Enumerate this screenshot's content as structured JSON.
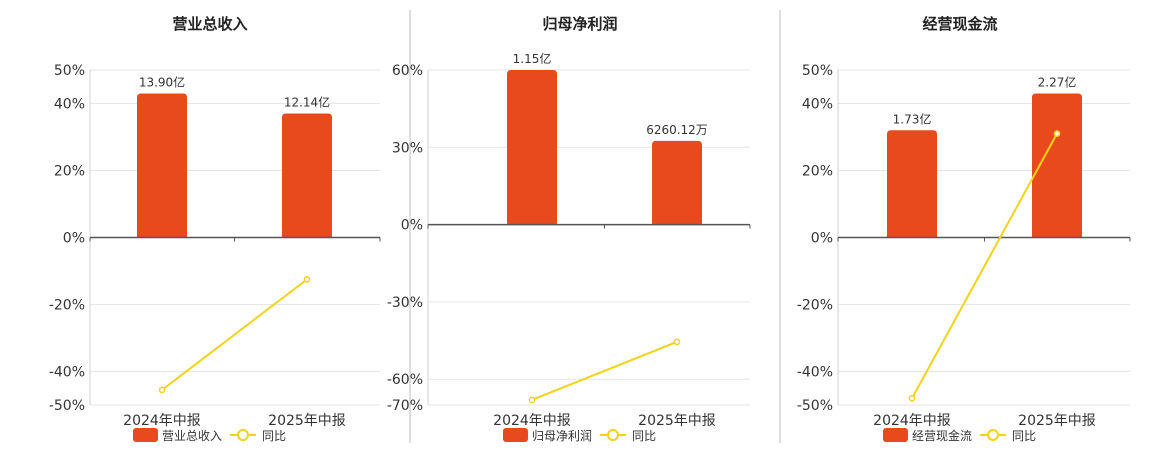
{
  "chart_data": [
    {
      "type": "bar",
      "title": "营业总收入",
      "categories": [
        "2024年中报",
        "2025年中报"
      ],
      "series": [
        {
          "name": "营业总收入",
          "type": "bar",
          "values": [
            43.0,
            37.0
          ],
          "labels": [
            "13.90亿",
            "12.14亿"
          ],
          "color": "#e84a1c"
        },
        {
          "name": "同比",
          "type": "line",
          "values": [
            -45.5,
            -12.5
          ],
          "color": "#f2d21b"
        }
      ],
      "yticks": [
        50,
        40,
        20,
        0,
        -20,
        -40,
        -50
      ],
      "ytick_labels": [
        "50%",
        "40%",
        "20%",
        "0%",
        "-20%",
        "-40%",
        "-50%"
      ],
      "ylim": [
        -50,
        50
      ],
      "legend": "bottom",
      "grid": true
    },
    {
      "type": "bar",
      "title": "归母净利润",
      "categories": [
        "2024年中报",
        "2025年中报"
      ],
      "series": [
        {
          "name": "归母净利润",
          "type": "bar",
          "values": [
            60.0,
            32.5
          ],
          "labels": [
            "1.15亿",
            "6260.12万"
          ],
          "color": "#e84a1c"
        },
        {
          "name": "同比",
          "type": "line",
          "values": [
            -68.0,
            -45.5
          ],
          "color": "#f2d21b"
        }
      ],
      "yticks": [
        60,
        30,
        0,
        -30,
        -60,
        -70
      ],
      "ytick_labels": [
        "60%",
        "30%",
        "0%",
        "-30%",
        "-60%",
        "-70%"
      ],
      "ylim": [
        -70,
        60
      ],
      "legend": "bottom",
      "grid": true
    },
    {
      "type": "bar",
      "title": "经营现金流",
      "categories": [
        "2024年中报",
        "2025年中报"
      ],
      "series": [
        {
          "name": "经营现金流",
          "type": "bar",
          "values": [
            32.0,
            43.0
          ],
          "labels": [
            "1.73亿",
            "2.27亿"
          ],
          "color": "#e84a1c"
        },
        {
          "name": "同比",
          "type": "line",
          "values": [
            -48.0,
            31.0
          ],
          "color": "#f2d21b"
        }
      ],
      "yticks": [
        50,
        40,
        20,
        0,
        -20,
        -40,
        -50
      ],
      "ytick_labels": [
        "50%",
        "40%",
        "20%",
        "0%",
        "-20%",
        "-40%",
        "-50%"
      ],
      "ylim": [
        -50,
        50
      ],
      "legend": "bottom",
      "grid": true
    }
  ]
}
